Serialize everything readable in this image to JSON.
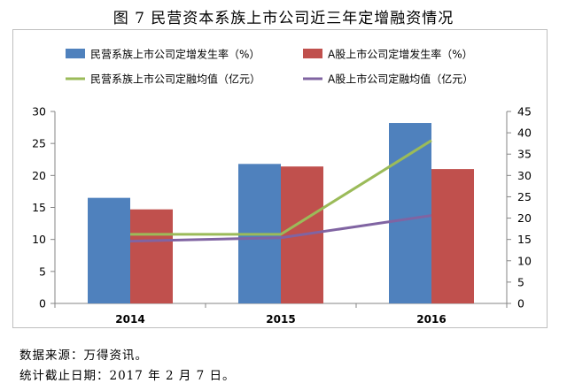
{
  "title": "图 7 民营资本系族上市公司近三年定增融资情况",
  "notes": {
    "source": "数据来源：万得资讯。",
    "cutoff": "统计截止日期：2017 年 2 月 7 日。"
  },
  "chart_data": {
    "type": "bar",
    "categories": [
      "2014",
      "2015",
      "2016"
    ],
    "series": [
      {
        "name": "民营系族上市公司定增发生率（%）",
        "kind": "bar",
        "axis": "left",
        "color": "#4f81bd",
        "values": [
          16.5,
          21.8,
          28.2
        ]
      },
      {
        "name": "A股上市公司定增发生率（%）",
        "kind": "bar",
        "axis": "left",
        "color": "#c0504d",
        "values": [
          14.7,
          21.4,
          21.0
        ]
      },
      {
        "name": "民营系族上市公司定融均值（亿元）",
        "kind": "line",
        "axis": "right",
        "color": "#9bbb59",
        "values": [
          16.2,
          16.2,
          38.2
        ]
      },
      {
        "name": "A股上市公司定融均值（亿元）",
        "kind": "line",
        "axis": "right",
        "color": "#8064a2",
        "values": [
          14.6,
          15.4,
          20.6
        ]
      }
    ],
    "ylim_left": [
      0,
      30
    ],
    "yticks_left": [
      "0",
      "5",
      "10",
      "15",
      "20",
      "25",
      "30"
    ],
    "ylim_right": [
      0,
      45
    ],
    "yticks_right": [
      "0",
      "5",
      "10",
      "15",
      "20",
      "25",
      "30",
      "35",
      "40",
      "45"
    ],
    "grid": false,
    "legend_position": "top"
  }
}
